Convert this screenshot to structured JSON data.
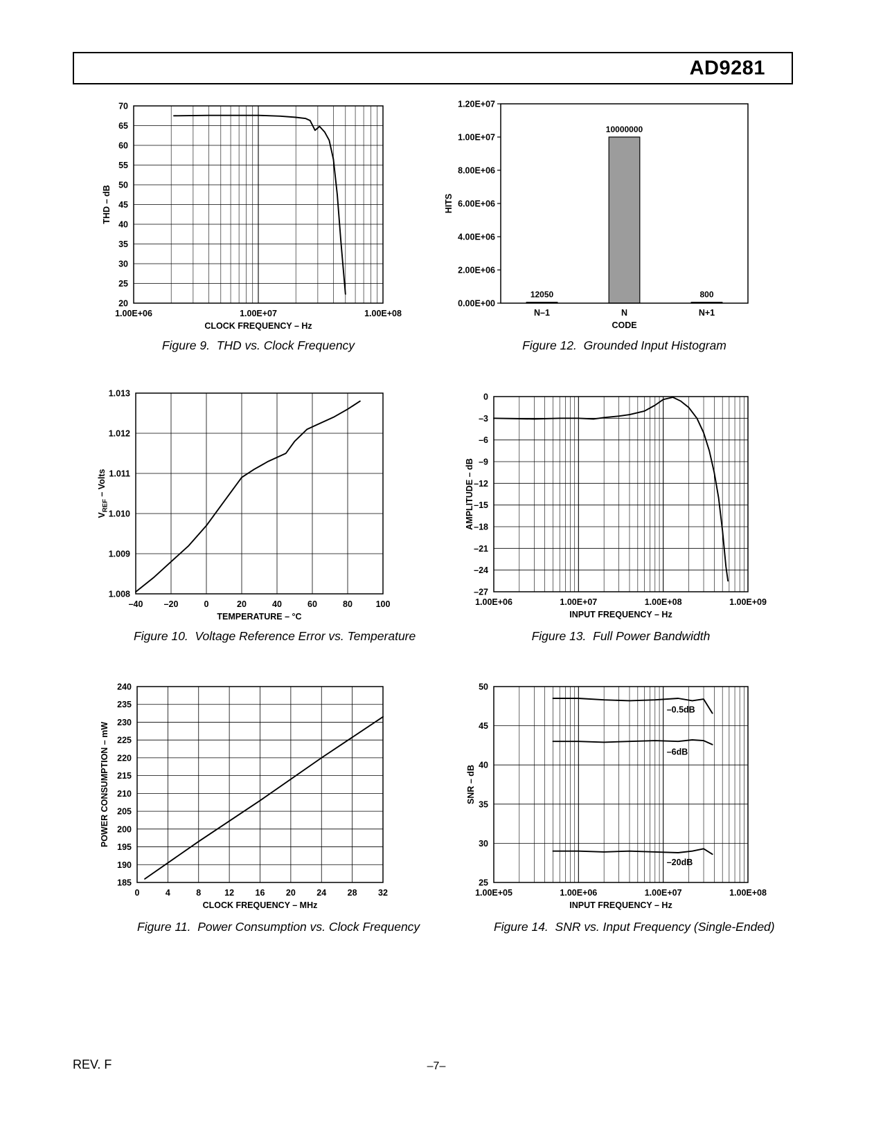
{
  "header": {
    "part_number": "AD9281"
  },
  "footer": {
    "revision": "REV. F",
    "page_number": "–7–"
  },
  "chart_data": [
    {
      "id": "fig9",
      "type": "line",
      "caption": "Figure 9.  THD vs. Clock Frequency",
      "x_scale": "log",
      "x_range": [
        1000000,
        100000000
      ],
      "x_ticks": [
        1000000,
        10000000,
        100000000
      ],
      "x_tick_labels": [
        "1.00E+06",
        "1.00E+07",
        "1.00E+08"
      ],
      "xlabel": "CLOCK FREQUENCY – Hz",
      "ylabel": "THD – dB",
      "y_range": [
        20,
        70
      ],
      "y_ticks": [
        20,
        25,
        30,
        35,
        40,
        45,
        50,
        55,
        60,
        65,
        70
      ],
      "y_tick_labels": [
        "20",
        "25",
        "30",
        "35",
        "40",
        "45",
        "50",
        "55",
        "60",
        "65",
        "70"
      ],
      "series": [
        {
          "points": [
            [
              2100000,
              67.5
            ],
            [
              4000000,
              67.6
            ],
            [
              7000000,
              67.6
            ],
            [
              10000000,
              67.6
            ],
            [
              15000000,
              67.4
            ],
            [
              20000000,
              67.1
            ],
            [
              24000000,
              66.8
            ],
            [
              26000000,
              66.3
            ],
            [
              28500000,
              63.8
            ],
            [
              31000000,
              64.8
            ],
            [
              34000000,
              63.4
            ],
            [
              37000000,
              61.3
            ],
            [
              40000000,
              56.5
            ],
            [
              43000000,
              47.5
            ],
            [
              46000000,
              35.5
            ],
            [
              50000000,
              22.3
            ]
          ]
        }
      ]
    },
    {
      "id": "fig12",
      "type": "bar",
      "caption": "Figure 12.  Grounded Input Histogram",
      "categories": [
        "N–1",
        "N",
        "N+1"
      ],
      "values": [
        12050,
        10000000,
        800
      ],
      "bar_labels": [
        "12050",
        "10000000",
        "800"
      ],
      "bar_color": "#9c9c9c",
      "xlabel": "CODE",
      "ylabel": "HITS",
      "y_range": [
        0,
        12000000
      ],
      "y_ticks": [
        0,
        2000000,
        4000000,
        6000000,
        8000000,
        10000000,
        12000000
      ],
      "y_tick_labels": [
        "0.00E+00",
        "2.00E+06",
        "4.00E+06",
        "6.00E+06",
        "8.00E+06",
        "1.00E+07",
        "1.20E+07"
      ],
      "grid": false
    },
    {
      "id": "fig10",
      "type": "line",
      "caption": "Figure 10.  Voltage Reference Error vs. Temperature",
      "x_scale": "linear",
      "x_range": [
        -40,
        100
      ],
      "x_ticks": [
        -40,
        -20,
        0,
        20,
        40,
        60,
        80,
        100
      ],
      "x_tick_labels": [
        "–40",
        "–20",
        "0",
        "20",
        "40",
        "60",
        "80",
        "100"
      ],
      "xlabel": "TEMPERATURE – °C",
      "ylabel": "VREF – Volts",
      "ylabel_rich": [
        {
          "t": "V"
        },
        {
          "t": "REF",
          "sub": true
        },
        {
          "t": " – Volts"
        }
      ],
      "y_range": [
        1.008,
        1.013
      ],
      "y_ticks": [
        1.008,
        1.009,
        1.01,
        1.011,
        1.012,
        1.013
      ],
      "y_tick_labels": [
        "1.008",
        "1.009",
        "1.010",
        "1.011",
        "1.012",
        "1.013"
      ],
      "series": [
        {
          "points": [
            [
              -40,
              1.00805
            ],
            [
              -30,
              1.0084
            ],
            [
              -20,
              1.0088
            ],
            [
              -10,
              1.0092
            ],
            [
              0,
              1.0097
            ],
            [
              10,
              1.0103
            ],
            [
              20,
              1.0109
            ],
            [
              27,
              1.0111
            ],
            [
              35,
              1.0113
            ],
            [
              45,
              1.0115
            ],
            [
              50,
              1.0118
            ],
            [
              57,
              1.0121
            ],
            [
              62,
              1.0122
            ],
            [
              72,
              1.0124
            ],
            [
              80,
              1.0126
            ],
            [
              87,
              1.0128
            ]
          ]
        }
      ]
    },
    {
      "id": "fig13",
      "type": "line",
      "caption": "Figure 13.  Full Power Bandwidth",
      "x_scale": "log",
      "x_range": [
        1000000,
        1000000000
      ],
      "x_ticks": [
        1000000,
        10000000,
        100000000,
        1000000000
      ],
      "x_tick_labels": [
        "1.00E+06",
        "1.00E+07",
        "1.00E+08",
        "1.00E+09"
      ],
      "xlabel": "INPUT FREQUENCY – Hz",
      "ylabel": "AMPLITUDE – dB",
      "y_range": [
        -27,
        0
      ],
      "y_ticks": [
        0,
        -3,
        -6,
        -9,
        -12,
        -15,
        -18,
        -21,
        -24,
        -27
      ],
      "y_tick_labels": [
        "0",
        "–3",
        "–6",
        "–9",
        "–12",
        "–15",
        "–18",
        "–21",
        "–24",
        "–27"
      ],
      "series": [
        {
          "points": [
            [
              1000000,
              -3
            ],
            [
              3000000,
              -3.1
            ],
            [
              6000000,
              -3
            ],
            [
              10000000,
              -3
            ],
            [
              15000000,
              -3.1
            ],
            [
              20000000,
              -2.9
            ],
            [
              30000000,
              -2.7
            ],
            [
              40000000,
              -2.5
            ],
            [
              60000000,
              -2
            ],
            [
              80000000,
              -1.2
            ],
            [
              100000000,
              -0.4
            ],
            [
              130000000,
              -0.1
            ],
            [
              160000000,
              -0.6
            ],
            [
              200000000,
              -1.5
            ],
            [
              250000000,
              -3
            ],
            [
              300000000,
              -5
            ],
            [
              350000000,
              -7.5
            ],
            [
              400000000,
              -10.5
            ],
            [
              450000000,
              -14
            ],
            [
              500000000,
              -18.5
            ],
            [
              550000000,
              -23.5
            ],
            [
              580000000,
              -25.5
            ]
          ]
        }
      ]
    },
    {
      "id": "fig11",
      "type": "line",
      "caption": "Figure 11.  Power Consumption vs. Clock Frequency",
      "x_scale": "linear",
      "x_range": [
        0,
        32
      ],
      "x_ticks": [
        0,
        4,
        8,
        12,
        16,
        20,
        24,
        28,
        32
      ],
      "x_tick_labels": [
        "0",
        "4",
        "8",
        "12",
        "16",
        "20",
        "24",
        "28",
        "32"
      ],
      "xlabel": "CLOCK FREQUENCY – MHz",
      "ylabel": "POWER CONSUMPTION – mW",
      "y_range": [
        185,
        240
      ],
      "y_ticks": [
        185,
        190,
        195,
        200,
        205,
        210,
        215,
        220,
        225,
        230,
        235,
        240
      ],
      "y_tick_labels": [
        "185",
        "190",
        "195",
        "200",
        "205",
        "210",
        "215",
        "220",
        "225",
        "230",
        "235",
        "240"
      ],
      "series": [
        {
          "points": [
            [
              1,
              186
            ],
            [
              8,
              196.5
            ],
            [
              16,
              208
            ],
            [
              24,
              220
            ],
            [
              32,
              231.5
            ]
          ]
        }
      ]
    },
    {
      "id": "fig14",
      "type": "line",
      "caption": "Figure 14.  SNR vs. Input Frequency (Single-Ended)",
      "x_scale": "log",
      "x_range": [
        100000,
        100000000
      ],
      "x_ticks": [
        100000,
        1000000,
        10000000,
        100000000
      ],
      "x_tick_labels": [
        "1.00E+05",
        "1.00E+06",
        "1.00E+07",
        "1.00E+08"
      ],
      "xlabel": "INPUT FREQUENCY – Hz",
      "ylabel": "SNR – dB",
      "y_range": [
        25,
        50
      ],
      "y_ticks": [
        25,
        30,
        35,
        40,
        45,
        50
      ],
      "y_tick_labels": [
        "25",
        "30",
        "35",
        "40",
        "45",
        "50"
      ],
      "series": [
        {
          "name": "–0.5dB",
          "points": [
            [
              500000,
              48.5
            ],
            [
              1000000,
              48.5
            ],
            [
              2000000,
              48.3
            ],
            [
              4000000,
              48.2
            ],
            [
              8000000,
              48.3
            ],
            [
              15000000,
              48.5
            ],
            [
              22000000,
              48.2
            ],
            [
              30000000,
              48.4
            ],
            [
              38000000,
              46.6
            ]
          ]
        },
        {
          "name": "–6dB",
          "points": [
            [
              500000,
              43
            ],
            [
              1000000,
              43
            ],
            [
              2000000,
              42.9
            ],
            [
              4000000,
              43
            ],
            [
              8000000,
              43.1
            ],
            [
              15000000,
              43
            ],
            [
              22000000,
              43.2
            ],
            [
              30000000,
              43.1
            ],
            [
              38000000,
              42.6
            ]
          ]
        },
        {
          "name": "–20dB",
          "points": [
            [
              500000,
              29
            ],
            [
              1000000,
              29
            ],
            [
              2000000,
              28.9
            ],
            [
              4000000,
              29
            ],
            [
              8000000,
              28.9
            ],
            [
              15000000,
              28.8
            ],
            [
              22000000,
              29
            ],
            [
              30000000,
              29.3
            ],
            [
              38000000,
              28.6
            ]
          ]
        }
      ],
      "annotations": [
        {
          "text": "–0.5dB",
          "x": 11000000,
          "y": 46.7
        },
        {
          "text": "–6dB",
          "x": 11000000,
          "y": 41.3
        },
        {
          "text": "–20dB",
          "x": 11000000,
          "y": 27.2
        }
      ]
    }
  ]
}
